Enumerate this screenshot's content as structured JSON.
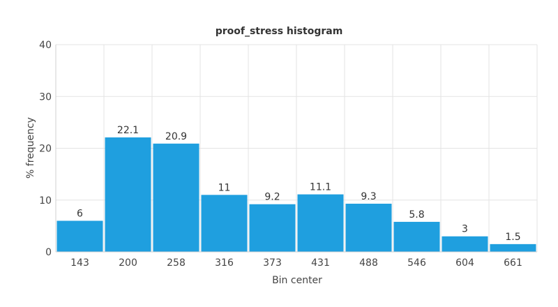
{
  "chart_data": {
    "type": "bar",
    "title": "proof_stress histogram",
    "xlabel": "Bin center",
    "ylabel": "% frequency",
    "categories": [
      "143",
      "200",
      "258",
      "316",
      "373",
      "431",
      "488",
      "546",
      "604",
      "661"
    ],
    "values": [
      6,
      22.1,
      20.9,
      11,
      9.2,
      11.1,
      9.3,
      5.8,
      3,
      1.5
    ],
    "value_labels": [
      "6",
      "22.1",
      "20.9",
      "11",
      "9.2",
      "11.1",
      "9.3",
      "5.8",
      "3",
      "1.5"
    ],
    "ylim": [
      0,
      40
    ],
    "yticks": [
      "0",
      "10",
      "20",
      "30",
      "40"
    ],
    "grid": true,
    "bar_color": "#1f9fdf"
  }
}
